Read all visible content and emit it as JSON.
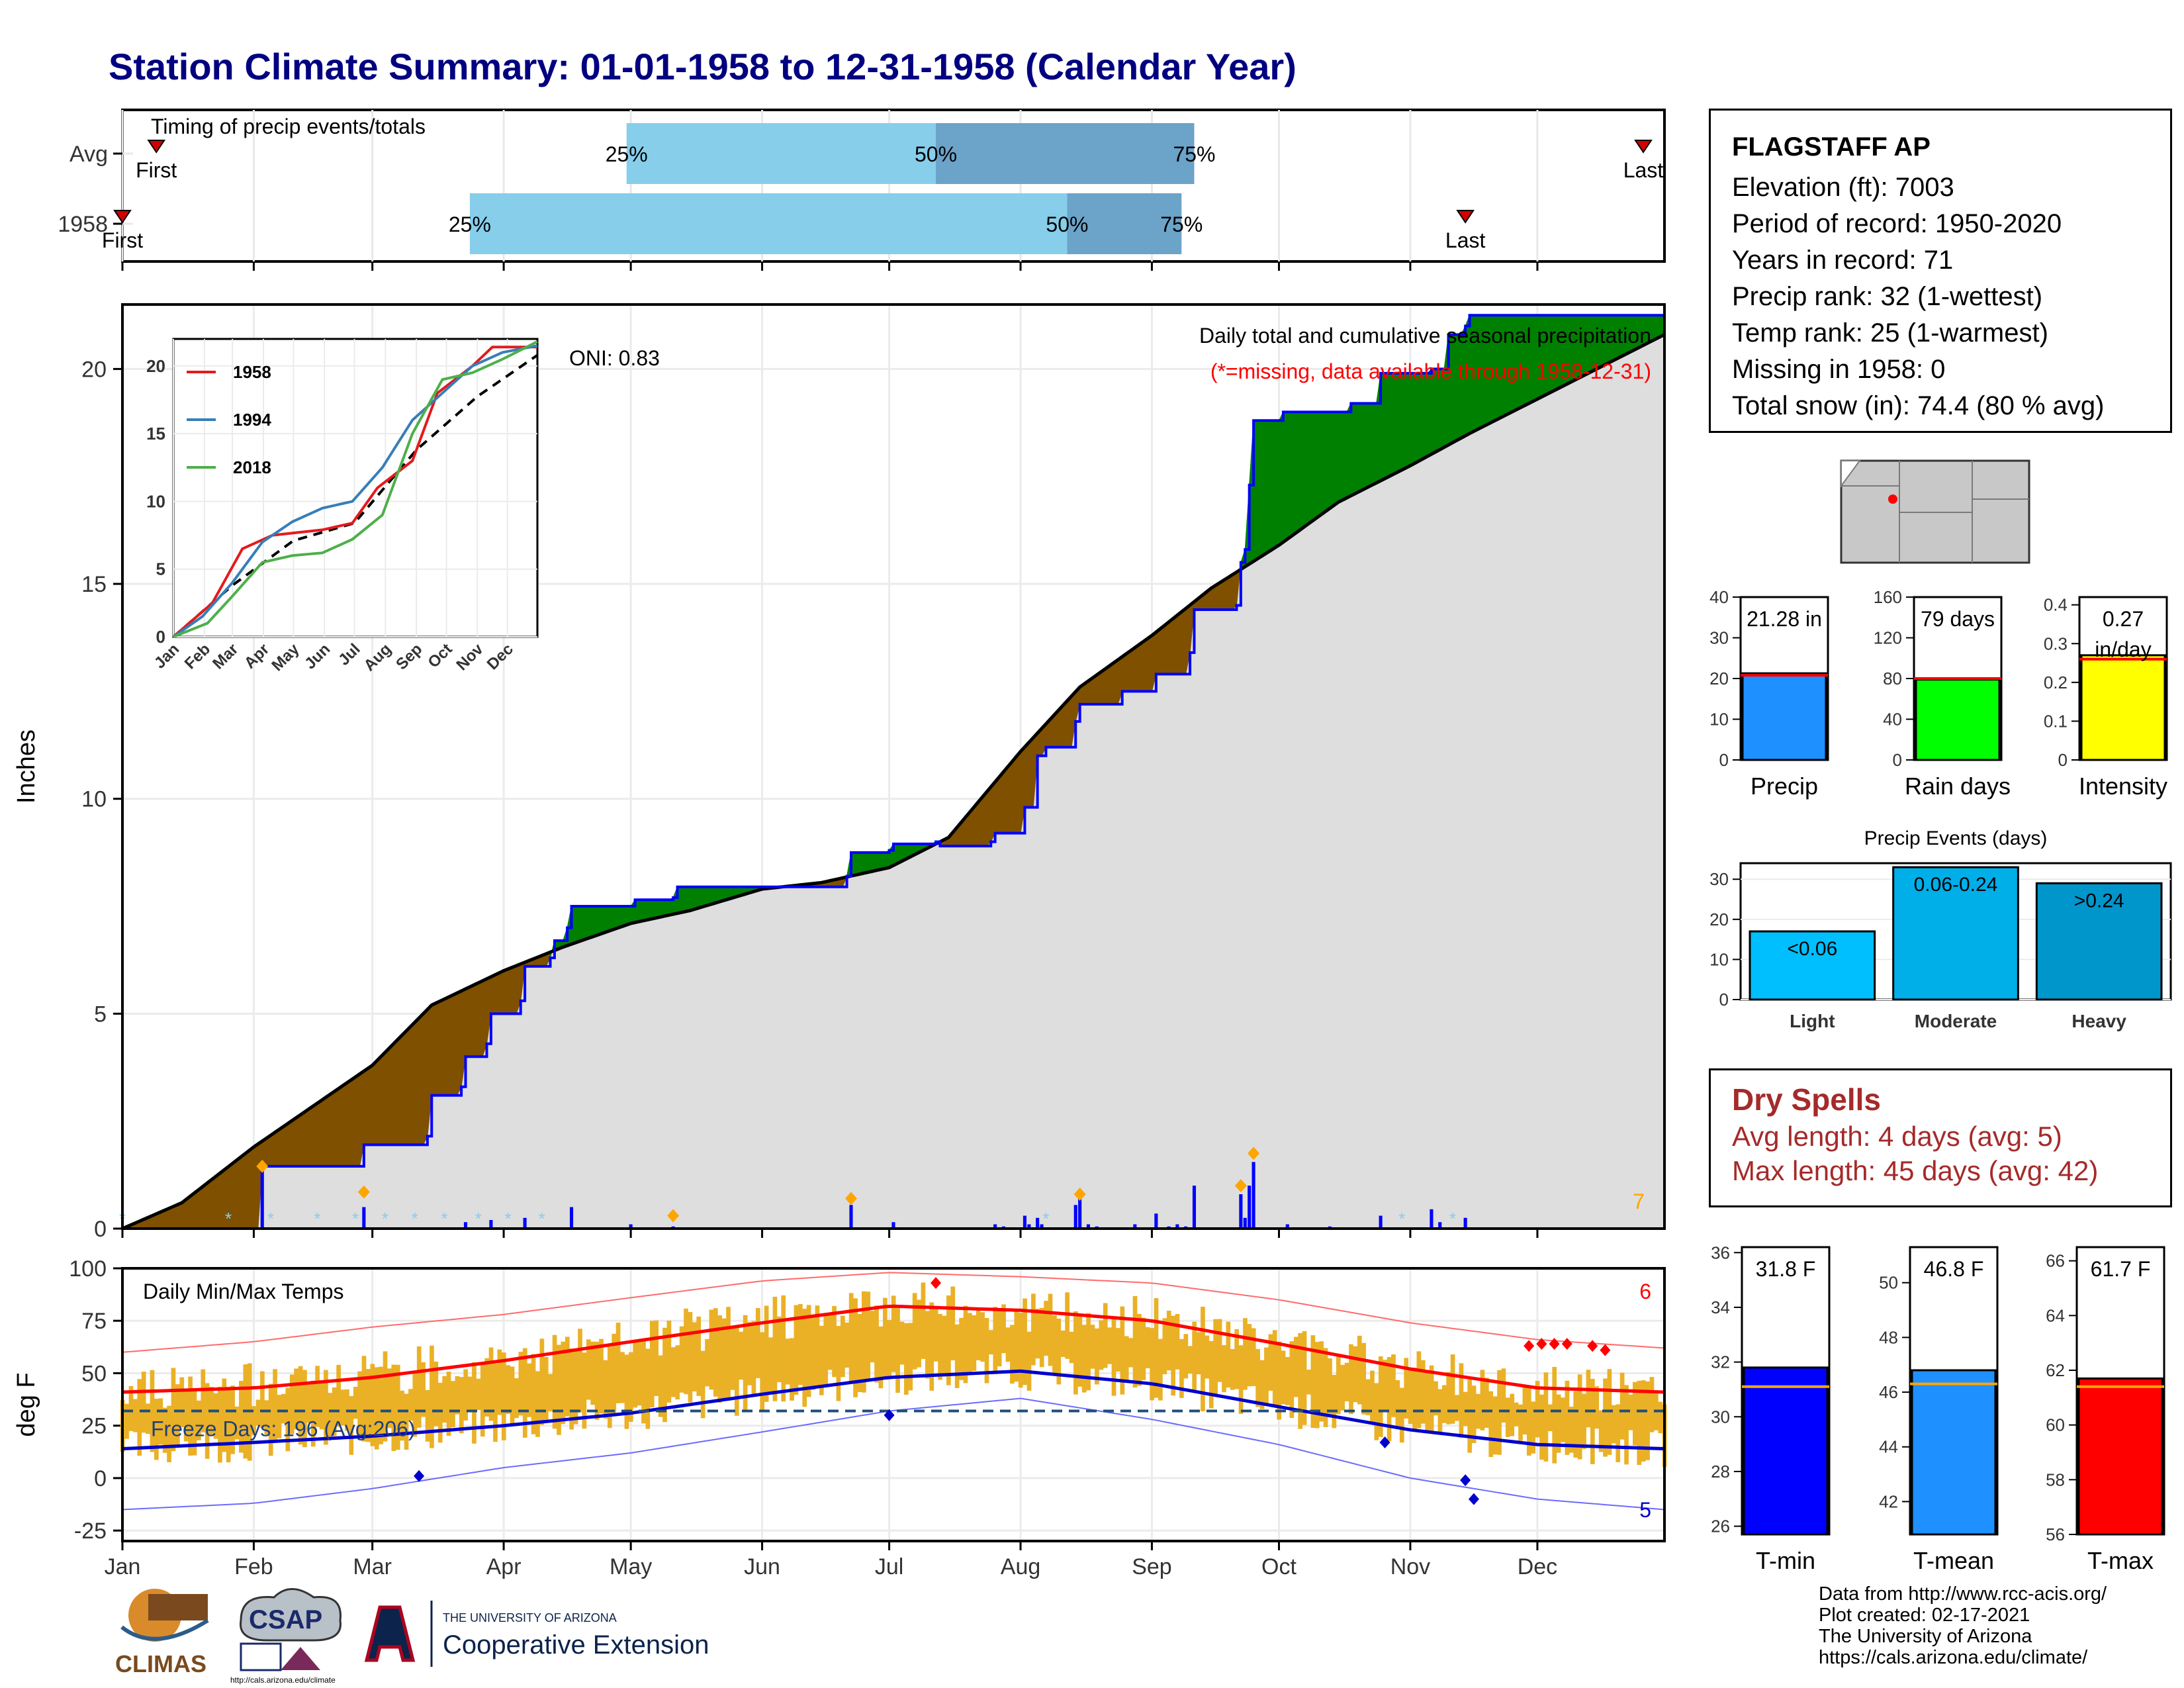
{
  "title": "Station Climate Summary: 01-01-1958 to 12-31-1958 (Calendar Year)",
  "station": {
    "name": "FLAGSTAFF AP",
    "lines": [
      "Elevation (ft): 7003",
      "Period of record: 1950-2020",
      "Years in record: 71",
      "Precip rank: 32 (1-wettest)",
      "Temp rank: 25 (1-warmest)",
      "Missing in 1958: 0",
      "Total snow (in): 74.4 (80 % avg)"
    ]
  },
  "dry_spells": {
    "title": "Dry Spells",
    "avg": "Avg length: 4 days (avg: 5)",
    "max": "Max length: 45 days (avg: 42)"
  },
  "credits": [
    "Data from http://www.rcc-acis.org/",
    "Plot created: 02-17-2021",
    "The University of Arizona",
    "https://cals.arizona.edu/climate/"
  ],
  "logos": {
    "climas": "CLIMAS",
    "csap": "CSAP",
    "csap_url": "http://cals.arizona.edu/climate",
    "ua_small": "THE UNIVERSITY OF ARIZONA",
    "ua_big": "Cooperative Extension"
  },
  "colors": {
    "title": "#000080",
    "surplus": "#008000",
    "deficit": "#7f5000",
    "normal_fill": "#dedede",
    "q1_bar": "#87ceeb",
    "q2_bar": "#6ba3c9",
    "precip_bar": "#1e90ff",
    "raindays_bar": "#00ff00",
    "intensity_bar": "#ffff00",
    "tmin_bar": "#0000ff",
    "tmean_bar": "#1e90ff",
    "tmax_bar": "#ff0000",
    "temp_bars": "#eab126",
    "dry_text": "#a52a2a"
  },
  "chart_data": [
    {
      "id": "timing",
      "type": "bar",
      "title": "Timing of precip events/totals",
      "categories": [
        "Avg",
        "1958"
      ],
      "months": [
        "Jan",
        "Feb",
        "Mar",
        "Apr",
        "May",
        "Jun",
        "Jul",
        "Aug",
        "Sep",
        "Oct",
        "Nov",
        "Dec"
      ],
      "rows": [
        {
          "label": "Avg",
          "first_doy": 9,
          "q25_doy": 120,
          "q50_doy": 193,
          "q75_doy": 254,
          "last_doy": 360
        },
        {
          "label": "1958",
          "first_doy": 1,
          "q25_doy": 83,
          "q50_doy": 224,
          "q75_doy": 251,
          "last_doy": 318
        }
      ],
      "text": {
        "first": "First",
        "last": "Last",
        "p25": "25%",
        "p50": "50%",
        "p75": "75%"
      }
    },
    {
      "id": "cumulative",
      "type": "area",
      "title": "Daily total and cumulative seasonal precipitation",
      "subtitle": "(*=missing, data available through 1958-12-31)",
      "annotation": "ONI: 0.83",
      "ylabel": "Inches",
      "ylim": [
        0,
        21.5
      ],
      "yticks": [
        0,
        5,
        10,
        15,
        20
      ],
      "x_range_doy": [
        1,
        365
      ],
      "count_label": "7",
      "normal_curve": [
        [
          1,
          0
        ],
        [
          15,
          0.6
        ],
        [
          32,
          1.9
        ],
        [
          60,
          3.8
        ],
        [
          74,
          5.2
        ],
        [
          91,
          6.0
        ],
        [
          105,
          6.55
        ],
        [
          121,
          7.1
        ],
        [
          135,
          7.4
        ],
        [
          152,
          7.9
        ],
        [
          166,
          8.05
        ],
        [
          182,
          8.4
        ],
        [
          196,
          9.1
        ],
        [
          213,
          11.1
        ],
        [
          227,
          12.6
        ],
        [
          244,
          13.8
        ],
        [
          258,
          14.9
        ],
        [
          274,
          15.9
        ],
        [
          288,
          16.9
        ],
        [
          305,
          17.75
        ],
        [
          319,
          18.5
        ],
        [
          335,
          19.3
        ],
        [
          349,
          20.0
        ],
        [
          365,
          20.8
        ]
      ],
      "cumulative_1958": [
        [
          1,
          0
        ],
        [
          33,
          0
        ],
        [
          34,
          1.45
        ],
        [
          57,
          1.45
        ],
        [
          58,
          1.95
        ],
        [
          73,
          2.15
        ],
        [
          74,
          3.1
        ],
        [
          81,
          3.3
        ],
        [
          82,
          4.0
        ],
        [
          87,
          4.3
        ],
        [
          88,
          5.0
        ],
        [
          95,
          5.3
        ],
        [
          96,
          6.1
        ],
        [
          102,
          6.3
        ],
        [
          103,
          6.7
        ],
        [
          106,
          7.0
        ],
        [
          107,
          7.5
        ],
        [
          121,
          7.5
        ],
        [
          122,
          7.65
        ],
        [
          131,
          7.7
        ],
        [
          132,
          7.95
        ],
        [
          172,
          8.2
        ],
        [
          173,
          8.75
        ],
        [
          182,
          8.8
        ],
        [
          183,
          8.95
        ],
        [
          193,
          9.0
        ],
        [
          194,
          8.9
        ],
        [
          206,
          9.0
        ],
        [
          207,
          9.2
        ],
        [
          214,
          9.8
        ],
        [
          217,
          11.0
        ],
        [
          219,
          11.2
        ],
        [
          226,
          11.8
        ],
        [
          227,
          12.2
        ],
        [
          237,
          12.5
        ],
        [
          245,
          12.9
        ],
        [
          253,
          13.4
        ],
        [
          254,
          14.4
        ],
        [
          264,
          14.5
        ],
        [
          265,
          15.5
        ],
        [
          266,
          15.8
        ],
        [
          267,
          17.3
        ],
        [
          268,
          18.8
        ],
        [
          275,
          19.0
        ],
        [
          291,
          19.2
        ],
        [
          298,
          19.9
        ],
        [
          310,
          20.0
        ],
        [
          314,
          20.8
        ],
        [
          318,
          21.0
        ],
        [
          319,
          21.25
        ],
        [
          365,
          21.25
        ]
      ],
      "daily_bars": [
        [
          34,
          1.4
        ],
        [
          58,
          0.5
        ],
        [
          82,
          0.15
        ],
        [
          88,
          0.2
        ],
        [
          96,
          0.25
        ],
        [
          107,
          0.5
        ],
        [
          121,
          0.1
        ],
        [
          131,
          0.05
        ],
        [
          173,
          0.55
        ],
        [
          183,
          0.15
        ],
        [
          207,
          0.1
        ],
        [
          209,
          0.05
        ],
        [
          214,
          0.3
        ],
        [
          215,
          0.1
        ],
        [
          217,
          0.25
        ],
        [
          218,
          0.1
        ],
        [
          226,
          0.55
        ],
        [
          227,
          0.7
        ],
        [
          229,
          0.1
        ],
        [
          231,
          0.05
        ],
        [
          240,
          0.1
        ],
        [
          245,
          0.35
        ],
        [
          248,
          0.05
        ],
        [
          250,
          0.1
        ],
        [
          252,
          0.05
        ],
        [
          254,
          1.0
        ],
        [
          265,
          0.8
        ],
        [
          266,
          0.25
        ],
        [
          267,
          1.0
        ],
        [
          268,
          1.55
        ],
        [
          276,
          0.1
        ],
        [
          286,
          0.05
        ],
        [
          298,
          0.3
        ],
        [
          310,
          0.45
        ],
        [
          312,
          0.15
        ],
        [
          318,
          0.25
        ]
      ],
      "snow_marks": [
        1,
        26,
        36,
        47,
        56,
        63,
        70,
        77,
        85,
        92,
        100,
        219,
        303,
        315
      ],
      "record_marks": [
        [
          34,
          1.45
        ],
        [
          58,
          0.85
        ],
        [
          131,
          0.3
        ],
        [
          173,
          0.7
        ],
        [
          227,
          0.8
        ],
        [
          265,
          1.0
        ],
        [
          268,
          1.75
        ]
      ]
    },
    {
      "id": "precip_years",
      "type": "line",
      "series": [
        {
          "name": "1958",
          "color": "#e41a1c",
          "values": [
            [
              1,
              0
            ],
            [
              40,
              2.5
            ],
            [
              70,
              6.5
            ],
            [
              100,
              7.5
            ],
            [
              150,
              7.9
            ],
            [
              180,
              8.4
            ],
            [
              205,
              11
            ],
            [
              240,
              13
            ],
            [
              265,
              18
            ],
            [
              300,
              20
            ],
            [
              320,
              21.4
            ],
            [
              365,
              21.4
            ]
          ]
        },
        {
          "name": "1994",
          "color": "#377eb8",
          "values": [
            [
              1,
              0
            ],
            [
              30,
              1.5
            ],
            [
              60,
              4
            ],
            [
              90,
              7
            ],
            [
              120,
              8.5
            ],
            [
              150,
              9.5
            ],
            [
              180,
              10
            ],
            [
              210,
              12.5
            ],
            [
              240,
              16
            ],
            [
              270,
              18
            ],
            [
              300,
              20
            ],
            [
              330,
              21
            ],
            [
              365,
              21.5
            ]
          ]
        },
        {
          "name": "2018",
          "color": "#4daf4a",
          "values": [
            [
              1,
              0
            ],
            [
              35,
              1
            ],
            [
              60,
              3
            ],
            [
              90,
              5.5
            ],
            [
              120,
              6
            ],
            [
              150,
              6.2
            ],
            [
              180,
              7.2
            ],
            [
              210,
              9
            ],
            [
              240,
              15
            ],
            [
              270,
              19
            ],
            [
              300,
              19.5
            ],
            [
              330,
              20.5
            ],
            [
              365,
              21.8
            ]
          ]
        }
      ],
      "normal": [
        [
          1,
          0
        ],
        [
          60,
          3.8
        ],
        [
          121,
          7.1
        ],
        [
          182,
          8.4
        ],
        [
          244,
          13.8
        ],
        [
          305,
          17.75
        ],
        [
          365,
          20.8
        ]
      ],
      "ylim": [
        0,
        22
      ],
      "yticks": [
        0,
        5,
        10,
        15,
        20
      ],
      "xticks": [
        "Jan",
        "Feb",
        "Mar",
        "Apr",
        "May",
        "Jun",
        "Jul",
        "Aug",
        "Sep",
        "Oct",
        "Nov",
        "Dec"
      ]
    },
    {
      "id": "temps",
      "type": "line",
      "title": "Daily Min/Max Temps",
      "ylabel": "deg F",
      "ylim": [
        -30,
        100
      ],
      "yticks": [
        -25,
        0,
        25,
        50,
        75,
        100
      ],
      "xticks": [
        "Jan",
        "Feb",
        "Mar",
        "Apr",
        "May",
        "Jun",
        "Jul",
        "Aug",
        "Sep",
        "Oct",
        "Nov",
        "Dec"
      ],
      "freeze_line": 32,
      "freeze_label": "Freeze Days: 196 (Avg:206)",
      "count_hot": "6",
      "count_cold": "5",
      "normal_max": [
        [
          1,
          41
        ],
        [
          32,
          43
        ],
        [
          60,
          48
        ],
        [
          91,
          56
        ],
        [
          121,
          65
        ],
        [
          152,
          74
        ],
        [
          182,
          82
        ],
        [
          213,
          80
        ],
        [
          244,
          75
        ],
        [
          274,
          64
        ],
        [
          305,
          52
        ],
        [
          335,
          43
        ],
        [
          365,
          41
        ]
      ],
      "normal_min": [
        [
          1,
          14
        ],
        [
          32,
          17
        ],
        [
          60,
          20
        ],
        [
          91,
          25
        ],
        [
          121,
          31
        ],
        [
          152,
          40
        ],
        [
          182,
          48
        ],
        [
          213,
          51
        ],
        [
          244,
          45
        ],
        [
          274,
          34
        ],
        [
          305,
          23
        ],
        [
          335,
          16
        ],
        [
          365,
          14
        ]
      ],
      "record_max": [
        [
          1,
          60
        ],
        [
          32,
          65
        ],
        [
          60,
          72
        ],
        [
          91,
          78
        ],
        [
          121,
          86
        ],
        [
          152,
          94
        ],
        [
          182,
          98
        ],
        [
          213,
          96
        ],
        [
          244,
          93
        ],
        [
          274,
          85
        ],
        [
          305,
          74
        ],
        [
          335,
          66
        ],
        [
          365,
          62
        ]
      ],
      "record_min": [
        [
          1,
          -15
        ],
        [
          32,
          -12
        ],
        [
          60,
          -5
        ],
        [
          91,
          5
        ],
        [
          121,
          12
        ],
        [
          152,
          22
        ],
        [
          182,
          32
        ],
        [
          213,
          38
        ],
        [
          244,
          28
        ],
        [
          274,
          16
        ],
        [
          305,
          0
        ],
        [
          335,
          -10
        ],
        [
          365,
          -15
        ]
      ],
      "hot_marks": [
        [
          193,
          93
        ],
        [
          333,
          63
        ],
        [
          336,
          64
        ],
        [
          339,
          64
        ],
        [
          342,
          64
        ],
        [
          348,
          63
        ],
        [
          351,
          61
        ]
      ],
      "cold_marks": [
        [
          71,
          1
        ],
        [
          182,
          30
        ],
        [
          299,
          17
        ],
        [
          318,
          -1
        ],
        [
          320,
          -10
        ]
      ]
    },
    {
      "id": "precip_summary",
      "type": "bar",
      "panels": [
        {
          "label": "Precip",
          "value": 21.28,
          "avg": 20.8,
          "text": "21.28 in",
          "ylim": [
            0,
            40
          ],
          "yticks": [
            0,
            10,
            20,
            30,
            40
          ]
        },
        {
          "label": "Rain days",
          "value": 79,
          "avg": 80,
          "text": "79 days",
          "ylim": [
            0,
            160
          ],
          "yticks": [
            0,
            40,
            80,
            120,
            160
          ]
        },
        {
          "label": "Intensity",
          "value": 0.27,
          "avg": 0.26,
          "text": "0.27 in/day",
          "ylim": [
            0,
            0.42
          ],
          "yticks": [
            0.0,
            0.1,
            0.2,
            0.3,
            0.4
          ]
        }
      ]
    },
    {
      "id": "precip_events",
      "type": "bar",
      "title": "Precip Events (days)",
      "categories": [
        "Light",
        "Moderate",
        "Heavy"
      ],
      "values": [
        17,
        33,
        29
      ],
      "value_labels": [
        "<0.06",
        "0.06-0.24",
        ">0.24"
      ],
      "ylim": [
        0,
        34
      ],
      "yticks": [
        0,
        10,
        20,
        30
      ]
    },
    {
      "id": "temp_summary",
      "type": "bar",
      "panels": [
        {
          "label": "T-min",
          "value": 31.8,
          "avg": 31.1,
          "text": "31.8 F",
          "ylim": [
            25.7,
            36.2
          ],
          "yticks": [
            26,
            28,
            30,
            32,
            34,
            36
          ]
        },
        {
          "label": "T-mean",
          "value": 46.8,
          "avg": 46.3,
          "text": "46.8 F",
          "ylim": [
            40.8,
            51.3
          ],
          "yticks": [
            42,
            44,
            46,
            48,
            50
          ]
        },
        {
          "label": "T-max",
          "value": 61.7,
          "avg": 61.4,
          "text": "61.7 F",
          "ylim": [
            56,
            66.5
          ],
          "yticks": [
            56,
            58,
            60,
            62,
            64,
            66
          ]
        }
      ]
    }
  ]
}
